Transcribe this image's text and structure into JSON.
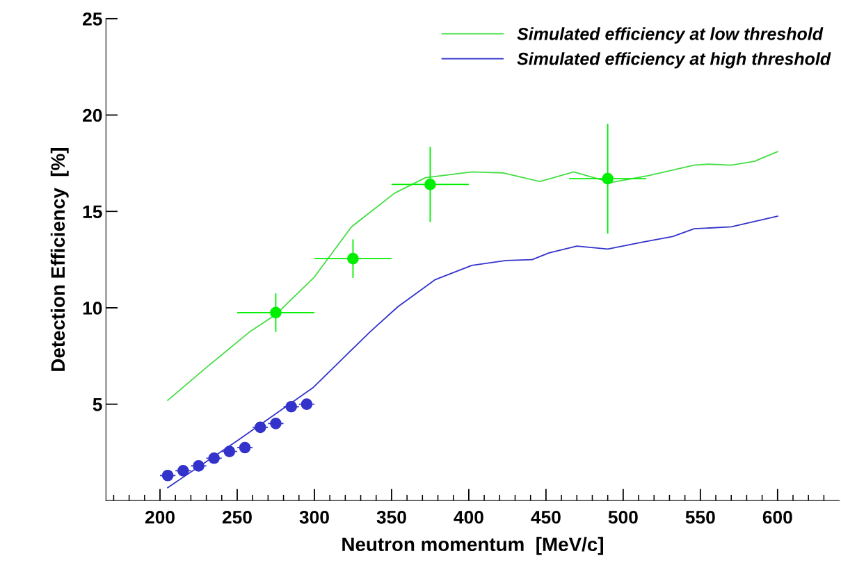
{
  "chart_data": {
    "type": "line",
    "xlabel": "Neutron momentum  [MeV/c]",
    "ylabel": "Detection Efficiency  [%]",
    "xlim": [
      165,
      640
    ],
    "xticks": [
      200,
      250,
      300,
      350,
      400,
      450,
      500,
      550,
      600
    ],
    "ylim": [
      0,
      25
    ],
    "yticks": [
      5,
      10,
      15,
      20,
      25
    ],
    "grid": false,
    "legend": "top right",
    "line_style": "solid",
    "series": [
      {
        "name": "Simulated efficiency at low threshold",
        "color": "#44dd44",
        "marker": "none",
        "x": [
          205,
          230,
          258,
          275,
          300,
          324,
          352,
          372,
          402,
          422,
          446,
          468,
          492,
          516,
          546,
          555,
          570,
          585,
          600
        ],
        "values": [
          5.2,
          6.9,
          8.75,
          9.65,
          11.6,
          14.2,
          15.95,
          16.75,
          17.05,
          17.0,
          16.55,
          17.05,
          16.5,
          16.85,
          17.4,
          17.45,
          17.4,
          17.6,
          18.1
        ]
      },
      {
        "name": "Simulated efficiency at high threshold",
        "color": "#3333cc",
        "marker": "none",
        "x": [
          205,
          250,
          299,
          320,
          336,
          354,
          378,
          402,
          424,
          441,
          452,
          470,
          490,
          512,
          532,
          546,
          570,
          600
        ],
        "values": [
          0.67,
          3.1,
          5.85,
          7.5,
          8.75,
          10.05,
          11.45,
          12.2,
          12.45,
          12.5,
          12.85,
          13.2,
          13.05,
          13.4,
          13.7,
          14.1,
          14.2,
          14.75
        ]
      },
      {
        "type": "scatter",
        "color": "#00ee00",
        "marker": "circle",
        "x": [
          275,
          325,
          375,
          490
        ],
        "values": [
          9.75,
          12.55,
          16.4,
          16.7
        ],
        "errors": [
          1.0,
          1.0,
          1.95,
          2.85
        ],
        "xerrors": [
          25,
          25,
          25,
          25
        ]
      },
      {
        "type": "scatter",
        "color": "#3333cc",
        "marker": "circle",
        "x": [
          205,
          215,
          225,
          235,
          245,
          255,
          265,
          275,
          285,
          295
        ],
        "values": [
          1.3,
          1.55,
          1.8,
          2.2,
          2.55,
          2.75,
          3.8,
          4.0,
          4.87,
          5.0
        ],
        "xerrors": [
          5,
          5,
          5,
          5,
          5,
          5,
          5,
          5,
          5,
          5
        ]
      }
    ]
  }
}
